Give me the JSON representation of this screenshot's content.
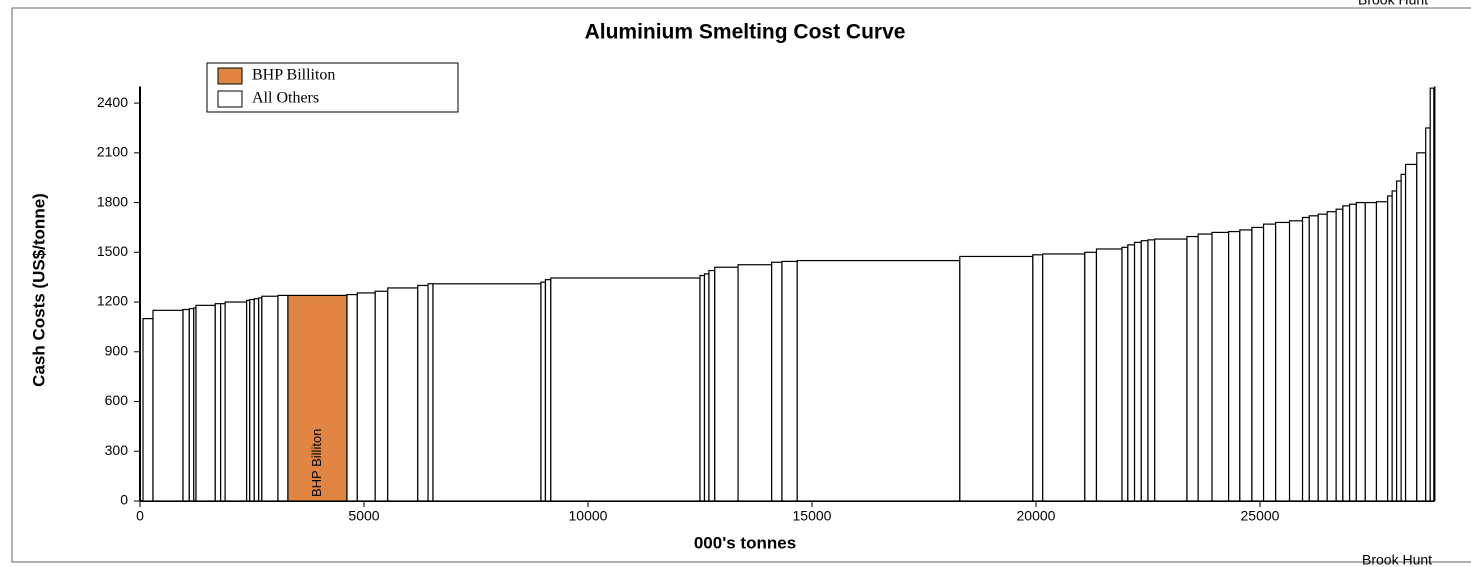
{
  "chart_data": {
    "type": "cost_curve",
    "title": "Aluminium Smelting Cost Curve",
    "x_label": "000's tonnes",
    "y_label": "Cash Costs (US$/tonne)",
    "source": "Brook Hunt",
    "annotation": "BHP Billiton",
    "xlim": [
      0,
      28900
    ],
    "ylim": [
      0,
      2500
    ],
    "xticks": [
      0,
      5000,
      10000,
      15000,
      20000,
      25000
    ],
    "yticks": [
      0,
      300,
      600,
      900,
      1200,
      1500,
      1800,
      2100,
      2400
    ],
    "legend": "upper left",
    "series": [
      {
        "name": "BHP Billiton",
        "color": "#e08642",
        "x_start": [
          3300
        ],
        "x_end": [
          4620
        ],
        "values": [
          1240
        ]
      },
      {
        "name": "All Others",
        "color": "#ffffff",
        "x_start": [
          67,
          290,
          960,
          1100,
          1200,
          1250,
          1680,
          1800,
          1900,
          2380,
          2450,
          2550,
          2650,
          2720,
          3080,
          4620,
          4850,
          5250,
          5530,
          6200,
          6430,
          6540,
          8950,
          9050,
          9170,
          12500,
          12600,
          12700,
          12830,
          13350,
          14100,
          14330,
          14670,
          18300,
          19930,
          20150,
          21090,
          21350,
          21920,
          22050,
          22200,
          22350,
          22500,
          22650,
          23370,
          23620,
          23930,
          24300,
          24550,
          24820,
          25080,
          25350,
          25660,
          25950,
          26100,
          26300,
          26500,
          26700,
          26850,
          27000,
          27150,
          27350,
          27600,
          27850,
          27950,
          28050,
          28150,
          28250,
          28500,
          28700,
          28800
        ],
        "x_end": [
          290,
          960,
          1100,
          1200,
          1250,
          1680,
          1800,
          1900,
          2380,
          2450,
          2550,
          2650,
          2720,
          3080,
          3300,
          4850,
          5250,
          5530,
          6200,
          6430,
          6540,
          8950,
          9050,
          9170,
          12500,
          12600,
          12700,
          12830,
          13350,
          14100,
          14330,
          14670,
          18300,
          19930,
          20150,
          21090,
          21350,
          21920,
          22050,
          22200,
          22350,
          22500,
          22650,
          23370,
          23620,
          23930,
          24300,
          24550,
          24820,
          25080,
          25350,
          25660,
          25950,
          26100,
          26300,
          26500,
          26700,
          26850,
          27000,
          27150,
          27350,
          27600,
          27850,
          27950,
          28050,
          28150,
          28250,
          28500,
          28700,
          28800,
          28880
        ],
        "values": [
          1100,
          1150,
          1155,
          1160,
          1165,
          1180,
          1190,
          1190,
          1200,
          1210,
          1215,
          1220,
          1225,
          1235,
          1240,
          1245,
          1255,
          1265,
          1285,
          1300,
          1310,
          1310,
          1320,
          1335,
          1345,
          1360,
          1370,
          1390,
          1410,
          1425,
          1440,
          1445,
          1450,
          1475,
          1485,
          1490,
          1500,
          1520,
          1530,
          1545,
          1560,
          1570,
          1575,
          1580,
          1595,
          1610,
          1620,
          1625,
          1635,
          1650,
          1670,
          1680,
          1690,
          1710,
          1720,
          1730,
          1745,
          1760,
          1780,
          1790,
          1800,
          1800,
          1805,
          1840,
          1870,
          1930,
          1970,
          2030,
          2100,
          2250,
          2490
        ]
      }
    ]
  }
}
